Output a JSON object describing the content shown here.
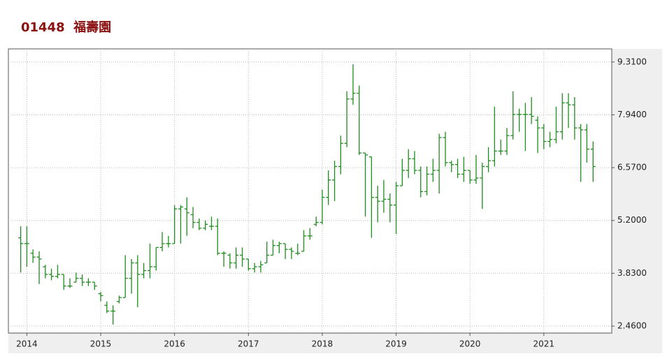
{
  "chart_data": {
    "type": "ohlc",
    "title": "01448  福壽園",
    "x": [
      2013.917,
      2014.0,
      2014.083,
      2014.167,
      2014.25,
      2014.333,
      2014.417,
      2014.5,
      2014.583,
      2014.667,
      2014.75,
      2014.833,
      2014.917,
      2015.0,
      2015.083,
      2015.167,
      2015.25,
      2015.333,
      2015.417,
      2015.5,
      2015.583,
      2015.667,
      2015.75,
      2015.833,
      2015.917,
      2016.0,
      2016.083,
      2016.167,
      2016.25,
      2016.333,
      2016.417,
      2016.5,
      2016.583,
      2016.667,
      2016.75,
      2016.833,
      2016.917,
      2017.0,
      2017.083,
      2017.167,
      2017.25,
      2017.333,
      2017.417,
      2017.5,
      2017.583,
      2017.667,
      2017.75,
      2017.833,
      2017.917,
      2018.0,
      2018.083,
      2018.167,
      2018.25,
      2018.333,
      2018.417,
      2018.5,
      2018.583,
      2018.667,
      2018.75,
      2018.833,
      2018.917,
      2019.0,
      2019.083,
      2019.167,
      2019.25,
      2019.333,
      2019.417,
      2019.5,
      2019.583,
      2019.667,
      2019.75,
      2019.833,
      2019.917,
      2020.0,
      2020.083,
      2020.167,
      2020.25,
      2020.333,
      2020.417,
      2020.5,
      2020.583,
      2020.667,
      2020.75,
      2020.833,
      2020.917,
      2021.0,
      2021.083,
      2021.167,
      2021.25,
      2021.333,
      2021.417,
      2021.5,
      2021.583,
      2021.667
    ],
    "open": [
      4.75,
      4.6,
      4.35,
      4.25,
      4.0,
      3.8,
      3.75,
      3.8,
      3.5,
      3.6,
      3.7,
      3.6,
      3.6,
      3.3,
      3.0,
      2.85,
      3.1,
      3.2,
      3.7,
      4.1,
      3.8,
      3.9,
      4.0,
      4.5,
      4.6,
      4.6,
      5.5,
      5.5,
      5.35,
      5.15,
      5.0,
      5.05,
      5.05,
      4.35,
      4.3,
      4.1,
      4.3,
      4.2,
      3.95,
      4.0,
      4.1,
      4.3,
      4.55,
      4.6,
      4.45,
      4.35,
      4.4,
      4.8,
      5.1,
      5.15,
      5.8,
      6.25,
      6.6,
      7.2,
      8.35,
      8.5,
      6.95,
      6.85,
      5.8,
      5.7,
      5.75,
      5.6,
      6.1,
      6.5,
      6.8,
      6.5,
      5.95,
      6.4,
      6.5,
      7.35,
      6.7,
      6.65,
      6.4,
      6.5,
      6.25,
      6.3,
      6.6,
      6.75,
      7.0,
      7.0,
      7.4,
      7.95,
      7.95,
      7.95,
      7.8,
      7.6,
      7.25,
      7.3,
      7.5,
      8.25,
      8.2,
      7.6,
      7.55,
      7.05
    ],
    "high": [
      5.05,
      5.05,
      4.45,
      4.4,
      4.05,
      3.95,
      4.05,
      3.8,
      3.7,
      3.85,
      3.8,
      3.7,
      3.6,
      3.35,
      3.1,
      3.0,
      3.25,
      4.3,
      4.2,
      4.3,
      4.1,
      4.6,
      4.5,
      4.9,
      4.8,
      5.6,
      5.6,
      5.8,
      5.55,
      5.25,
      5.2,
      5.3,
      5.25,
      4.4,
      4.35,
      4.5,
      4.5,
      4.2,
      4.1,
      4.15,
      4.65,
      4.7,
      4.65,
      4.6,
      4.5,
      4.6,
      4.95,
      5.0,
      5.3,
      6.0,
      6.5,
      6.75,
      7.4,
      8.55,
      9.25,
      8.7,
      6.95,
      6.85,
      6.1,
      6.25,
      5.9,
      6.2,
      6.8,
      7.05,
      7.0,
      6.6,
      6.6,
      6.8,
      7.45,
      7.5,
      6.75,
      6.8,
      6.85,
      6.5,
      6.9,
      6.7,
      7.1,
      8.15,
      7.3,
      7.6,
      8.55,
      8.1,
      8.25,
      8.4,
      7.9,
      7.7,
      7.5,
      8.15,
      8.5,
      8.5,
      8.4,
      7.7,
      7.7,
      7.25
    ],
    "low": [
      3.85,
      4.0,
      4.1,
      3.55,
      3.7,
      3.65,
      3.7,
      3.4,
      3.45,
      3.6,
      3.5,
      3.5,
      3.4,
      3.1,
      2.8,
      2.5,
      3.05,
      3.2,
      3.3,
      2.95,
      3.7,
      3.7,
      3.9,
      4.4,
      4.5,
      4.6,
      4.6,
      4.8,
      5.0,
      4.95,
      4.95,
      4.95,
      4.3,
      4.0,
      3.95,
      3.95,
      4.0,
      3.9,
      3.85,
      3.85,
      4.1,
      4.3,
      4.35,
      4.2,
      4.2,
      4.3,
      4.4,
      4.7,
      5.05,
      5.1,
      5.6,
      5.7,
      6.4,
      7.1,
      8.2,
      6.9,
      5.3,
      4.75,
      5.15,
      5.4,
      5.15,
      4.85,
      6.1,
      6.3,
      6.4,
      5.8,
      5.85,
      6.2,
      5.9,
      6.6,
      6.45,
      6.3,
      6.2,
      6.15,
      6.15,
      5.5,
      6.45,
      6.6,
      6.9,
      6.9,
      7.3,
      7.5,
      7.0,
      7.7,
      6.95,
      7.05,
      7.1,
      7.2,
      7.3,
      7.6,
      7.3,
      6.2,
      6.7,
      6.2
    ],
    "close": [
      4.6,
      4.6,
      4.25,
      4.2,
      3.8,
      3.75,
      3.8,
      3.5,
      3.5,
      3.7,
      3.6,
      3.6,
      3.5,
      3.25,
      2.85,
      2.85,
      3.2,
      3.7,
      4.1,
      3.8,
      3.9,
      4.0,
      4.5,
      4.6,
      4.6,
      5.5,
      5.55,
      5.4,
      5.15,
      5.0,
      5.1,
      5.05,
      4.35,
      4.35,
      4.1,
      4.3,
      4.2,
      3.95,
      4.0,
      4.05,
      4.3,
      4.55,
      4.6,
      4.45,
      4.4,
      4.35,
      4.8,
      4.8,
      5.15,
      5.8,
      6.25,
      6.6,
      7.2,
      8.35,
      8.5,
      6.95,
      6.9,
      5.8,
      5.7,
      5.75,
      5.6,
      6.1,
      6.5,
      6.8,
      6.5,
      5.95,
      6.4,
      6.5,
      7.35,
      6.7,
      6.65,
      6.4,
      6.5,
      6.25,
      6.3,
      6.6,
      6.75,
      7.0,
      7.0,
      7.4,
      7.95,
      7.95,
      7.95,
      7.9,
      7.6,
      7.25,
      7.3,
      7.5,
      8.25,
      8.2,
      7.6,
      7.55,
      7.05,
      6.6
    ],
    "color": "#1e8c1e",
    "xlim": [
      2013.75,
      2021.92
    ],
    "xticks": [
      2014,
      2015,
      2016,
      2017,
      2018,
      2019,
      2020,
      2021
    ],
    "ylim": [
      2.28,
      9.65
    ],
    "yticks": [
      {
        "value": 2.46,
        "label": "2.4600"
      },
      {
        "value": 3.83,
        "label": "3.8300"
      },
      {
        "value": 5.2,
        "label": "5.2000"
      },
      {
        "value": 6.57,
        "label": "6.5700"
      },
      {
        "value": 7.94,
        "label": "7.9400"
      },
      {
        "value": 9.31,
        "label": "9.3100"
      }
    ],
    "grid": true
  }
}
